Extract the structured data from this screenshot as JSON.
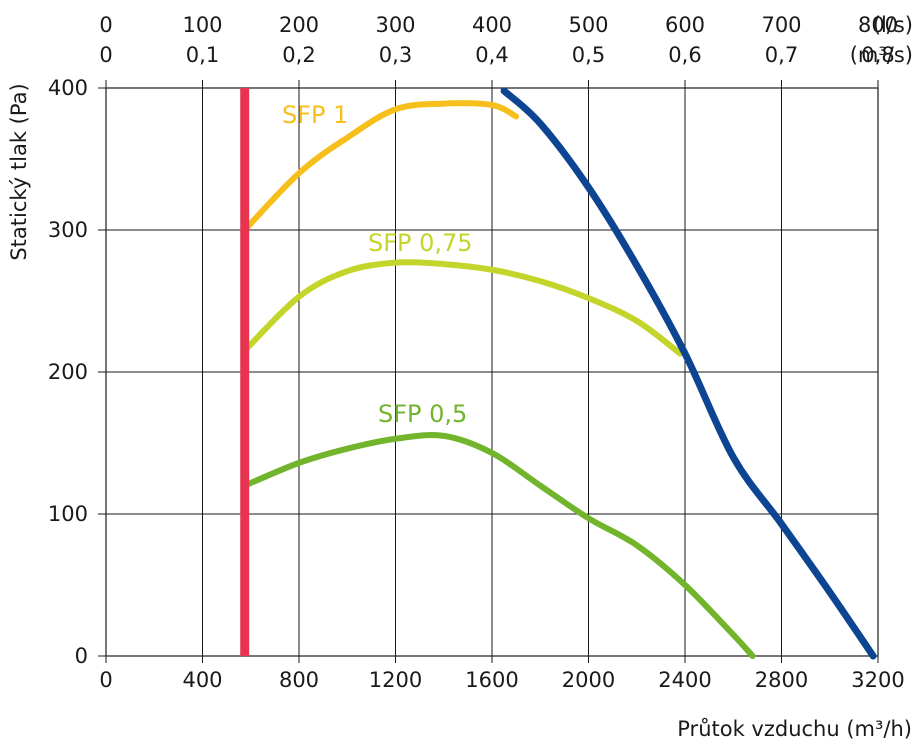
{
  "chart_data": {
    "type": "line",
    "xlabel": "Průtok vzduchu (m³/h)",
    "ylabel": "Statický tlak (Pa)",
    "xlim": [
      0,
      3200
    ],
    "ylim": [
      0,
      400
    ],
    "grid": true,
    "x_ticks": [
      "0",
      "400",
      "800",
      "1200",
      "1600",
      "2000",
      "2400",
      "2800",
      "3200"
    ],
    "y_ticks": [
      "0",
      "100",
      "200",
      "300",
      "400"
    ],
    "top_axis_ls": {
      "unit": "(l/s)",
      "ticks": [
        "0",
        "100",
        "200",
        "300",
        "400",
        "500",
        "600",
        "700",
        "800"
      ]
    },
    "top_axis_m3s": {
      "unit": "(m³/s)",
      "ticks": [
        "0",
        "0,1",
        "0,2",
        "0,3",
        "0,4",
        "0,5",
        "0,6",
        "0,7",
        "0,8"
      ]
    },
    "series": [
      {
        "color": "#e8354f",
        "points": [
          [
            575,
            0
          ],
          [
            575,
            400
          ]
        ]
      },
      {
        "label": "SFP 1",
        "color": "#f7bf1b",
        "points": [
          [
            575,
            300
          ],
          [
            800,
            340
          ],
          [
            1000,
            365
          ],
          [
            1200,
            385
          ],
          [
            1400,
            389
          ],
          [
            1600,
            388
          ],
          [
            1700,
            380
          ]
        ]
      },
      {
        "label": "SFP 0,75",
        "color": "#c3d52b",
        "points": [
          [
            575,
            215
          ],
          [
            800,
            253
          ],
          [
            1000,
            271
          ],
          [
            1200,
            277
          ],
          [
            1400,
            276
          ],
          [
            1600,
            272
          ],
          [
            1800,
            264
          ],
          [
            2000,
            252
          ],
          [
            2200,
            236
          ],
          [
            2380,
            213
          ]
        ]
      },
      {
        "label": "SFP 0,5",
        "color": "#72b42c",
        "points": [
          [
            575,
            120
          ],
          [
            800,
            136
          ],
          [
            1000,
            146
          ],
          [
            1200,
            153
          ],
          [
            1400,
            155
          ],
          [
            1600,
            143
          ],
          [
            1800,
            120
          ],
          [
            2000,
            97
          ],
          [
            2200,
            78
          ],
          [
            2400,
            50
          ],
          [
            2600,
            15
          ],
          [
            2680,
            0
          ]
        ]
      },
      {
        "color": "#0d4592",
        "points": [
          [
            1650,
            398
          ],
          [
            1800,
            375
          ],
          [
            2000,
            330
          ],
          [
            2200,
            275
          ],
          [
            2400,
            213
          ],
          [
            2600,
            140
          ],
          [
            2800,
            93
          ],
          [
            3000,
            45
          ],
          [
            3180,
            0
          ]
        ]
      }
    ]
  }
}
